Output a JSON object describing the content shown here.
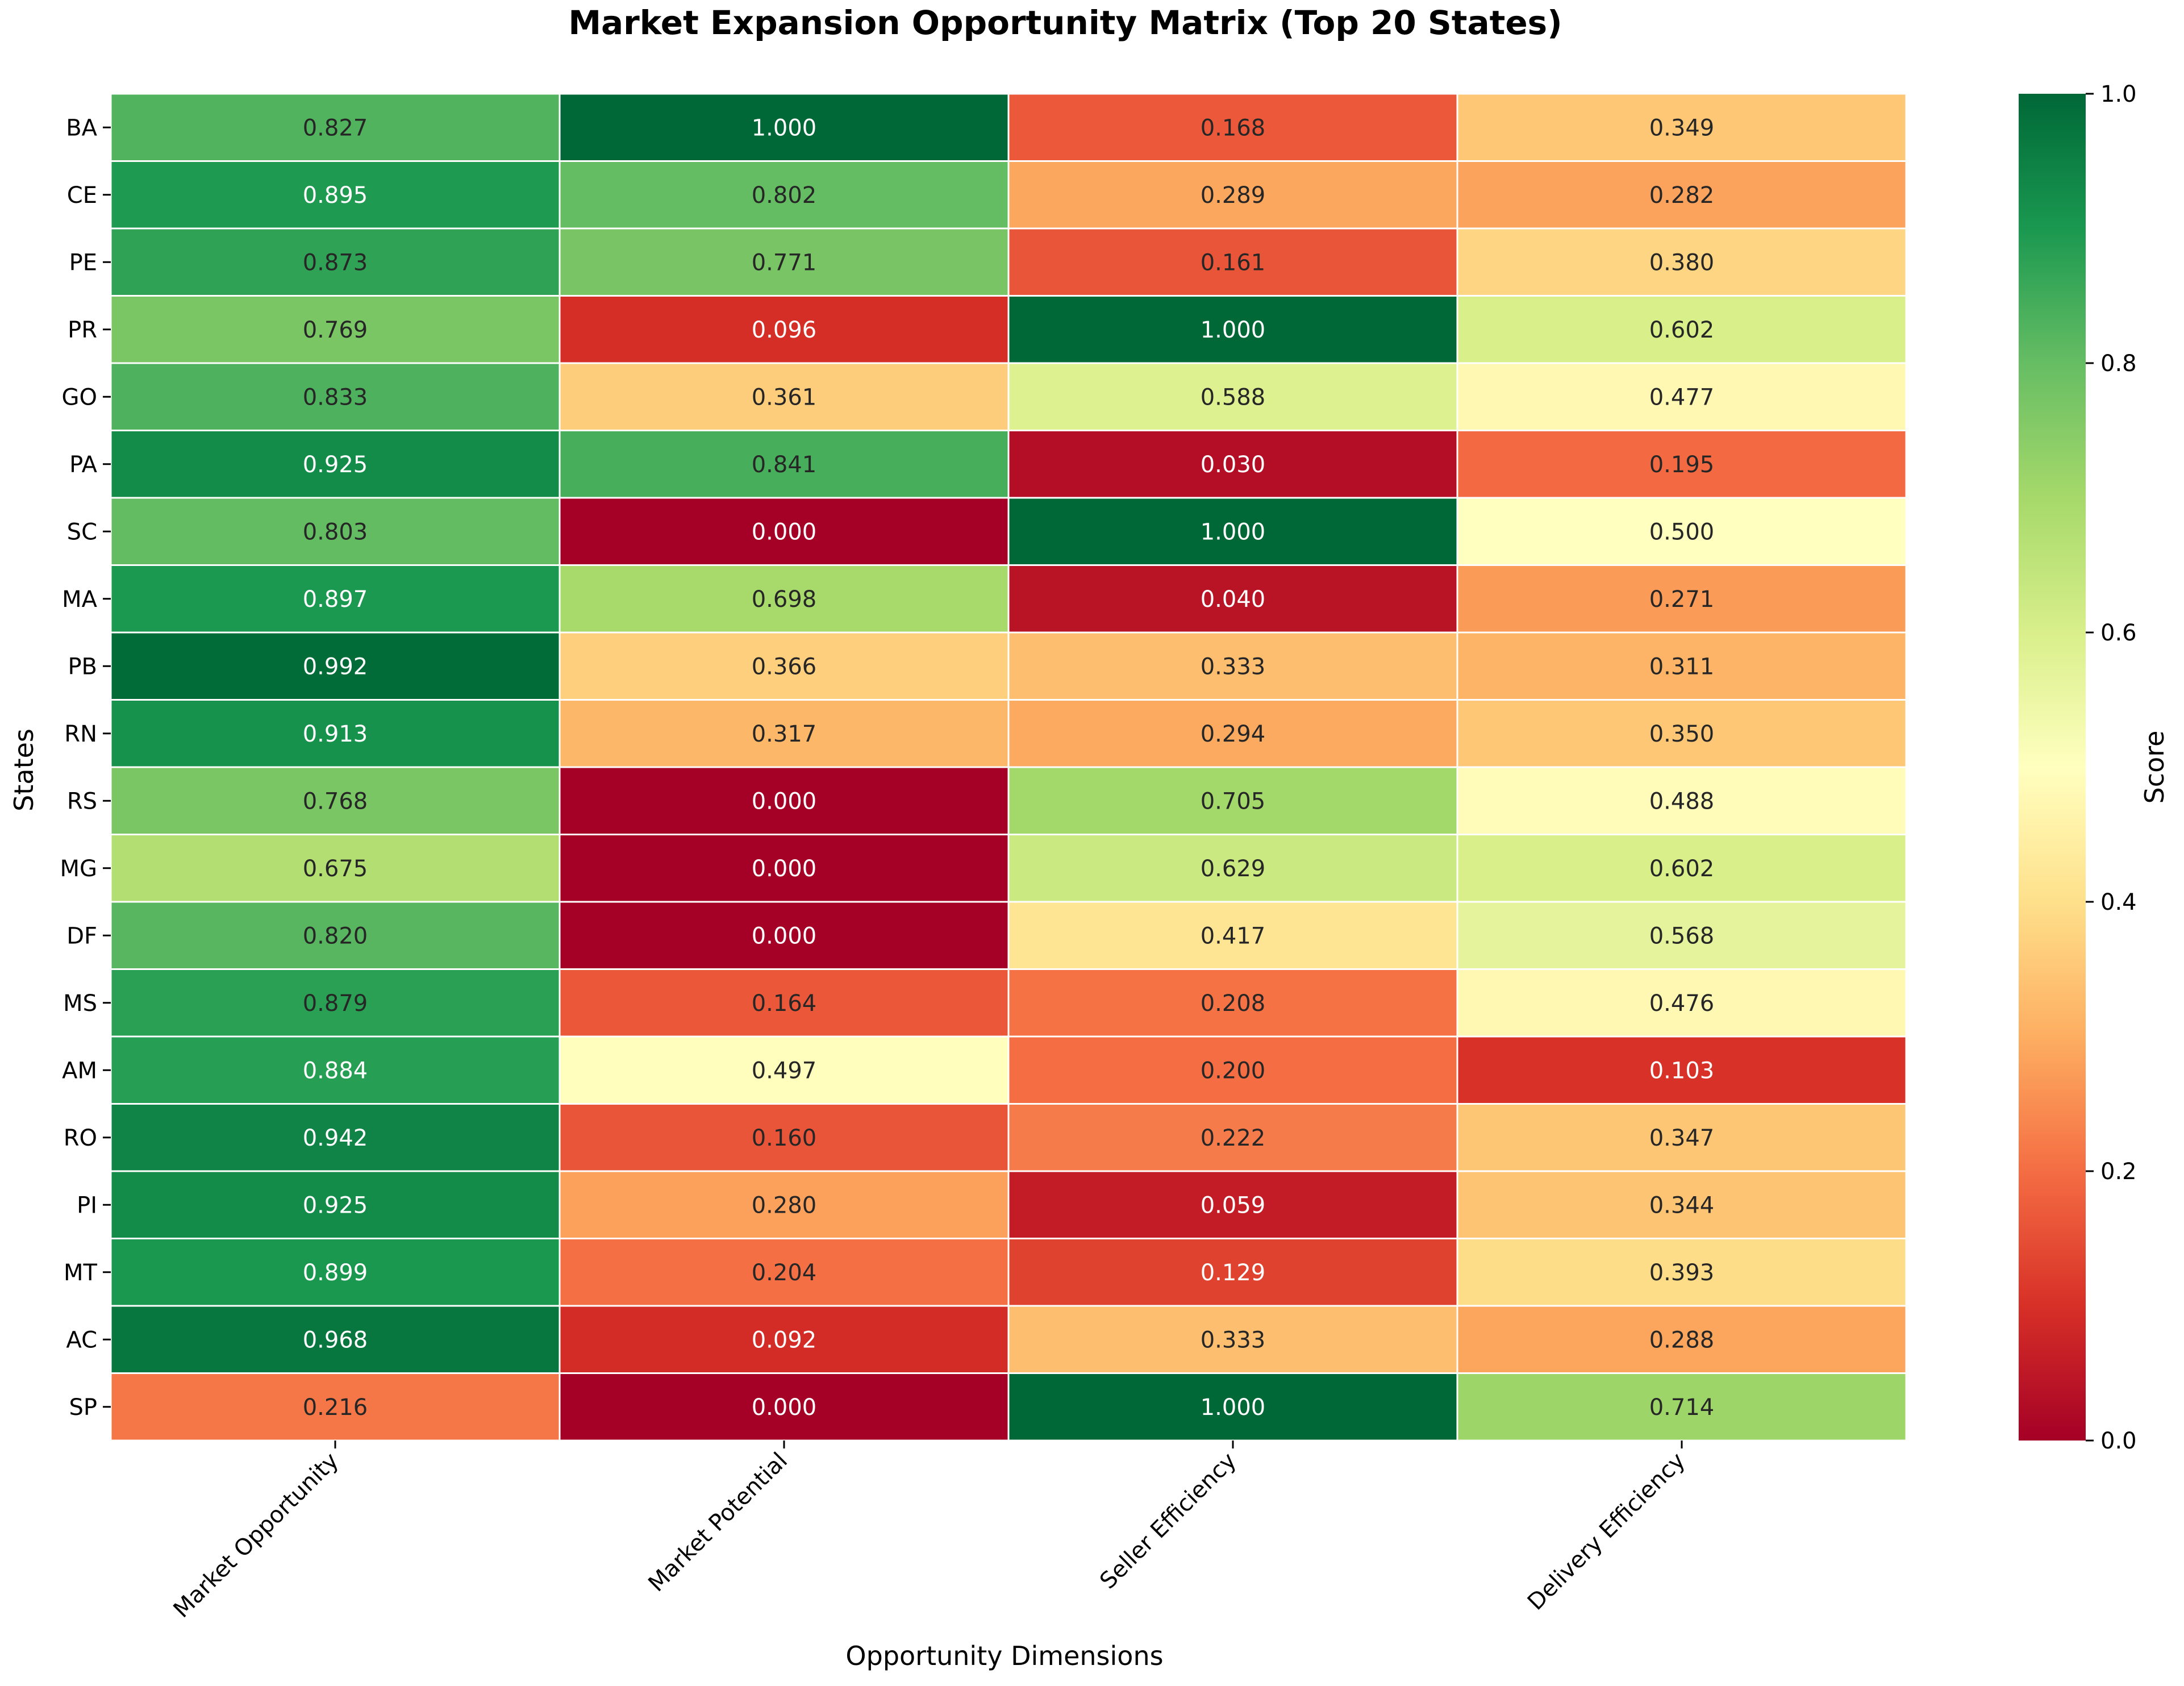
{
  "chart_data": {
    "type": "heatmap",
    "title": "Market Expansion Opportunity Matrix (Top 20 States)",
    "xlabel": "Opportunity Dimensions",
    "ylabel": "States",
    "colorbar_label": "Score",
    "colormap": "RdYlGn",
    "vmin": 0.0,
    "vmax": 1.0,
    "colorbar_ticks": [
      "0.0",
      "0.2",
      "0.4",
      "0.6",
      "0.8",
      "1.0"
    ],
    "columns": [
      "Market Opportunity",
      "Market Potential",
      "Seller Efficiency",
      "Delivery Efficiency"
    ],
    "rows": [
      "BA",
      "CE",
      "PE",
      "PR",
      "GO",
      "PA",
      "SC",
      "MA",
      "PB",
      "RN",
      "RS",
      "MG",
      "DF",
      "MS",
      "AM",
      "RO",
      "PI",
      "MT",
      "AC",
      "SP"
    ],
    "values": [
      [
        0.827,
        1.0,
        0.168,
        0.349
      ],
      [
        0.895,
        0.802,
        0.289,
        0.282
      ],
      [
        0.873,
        0.771,
        0.161,
        0.38
      ],
      [
        0.769,
        0.096,
        1.0,
        0.602
      ],
      [
        0.833,
        0.361,
        0.588,
        0.477
      ],
      [
        0.925,
        0.841,
        0.03,
        0.195
      ],
      [
        0.803,
        0.0,
        1.0,
        0.5
      ],
      [
        0.897,
        0.698,
        0.04,
        0.271
      ],
      [
        0.992,
        0.366,
        0.333,
        0.311
      ],
      [
        0.913,
        0.317,
        0.294,
        0.35
      ],
      [
        0.768,
        0.0,
        0.705,
        0.488
      ],
      [
        0.675,
        0.0,
        0.629,
        0.602
      ],
      [
        0.82,
        0.0,
        0.417,
        0.568
      ],
      [
        0.879,
        0.164,
        0.208,
        0.476
      ],
      [
        0.884,
        0.497,
        0.2,
        0.103
      ],
      [
        0.942,
        0.16,
        0.222,
        0.347
      ],
      [
        0.925,
        0.28,
        0.059,
        0.344
      ],
      [
        0.899,
        0.204,
        0.129,
        0.393
      ],
      [
        0.968,
        0.092,
        0.333,
        0.288
      ],
      [
        0.216,
        0.0,
        1.0,
        0.714
      ]
    ],
    "value_labels": [
      [
        "0.827",
        "1.000",
        "0.168",
        "0.349"
      ],
      [
        "0.895",
        "0.802",
        "0.289",
        "0.282"
      ],
      [
        "0.873",
        "0.771",
        "0.161",
        "0.380"
      ],
      [
        "0.769",
        "0.096",
        "1.000",
        "0.602"
      ],
      [
        "0.833",
        "0.361",
        "0.588",
        "0.477"
      ],
      [
        "0.925",
        "0.841",
        "0.030",
        "0.195"
      ],
      [
        "0.803",
        "0.000",
        "1.000",
        "0.500"
      ],
      [
        "0.897",
        "0.698",
        "0.040",
        "0.271"
      ],
      [
        "0.992",
        "0.366",
        "0.333",
        "0.311"
      ],
      [
        "0.913",
        "0.317",
        "0.294",
        "0.350"
      ],
      [
        "0.768",
        "0.000",
        "0.705",
        "0.488"
      ],
      [
        "0.675",
        "0.000",
        "0.629",
        "0.602"
      ],
      [
        "0.820",
        "0.000",
        "0.417",
        "0.568"
      ],
      [
        "0.879",
        "0.164",
        "0.208",
        "0.476"
      ],
      [
        "0.884",
        "0.497",
        "0.200",
        "0.103"
      ],
      [
        "0.942",
        "0.160",
        "0.222",
        "0.347"
      ],
      [
        "0.925",
        "0.280",
        "0.059",
        "0.344"
      ],
      [
        "0.899",
        "0.204",
        "0.129",
        "0.393"
      ],
      [
        "0.968",
        "0.092",
        "0.333",
        "0.288"
      ],
      [
        "0.216",
        "0.000",
        "1.000",
        "0.714"
      ]
    ]
  }
}
